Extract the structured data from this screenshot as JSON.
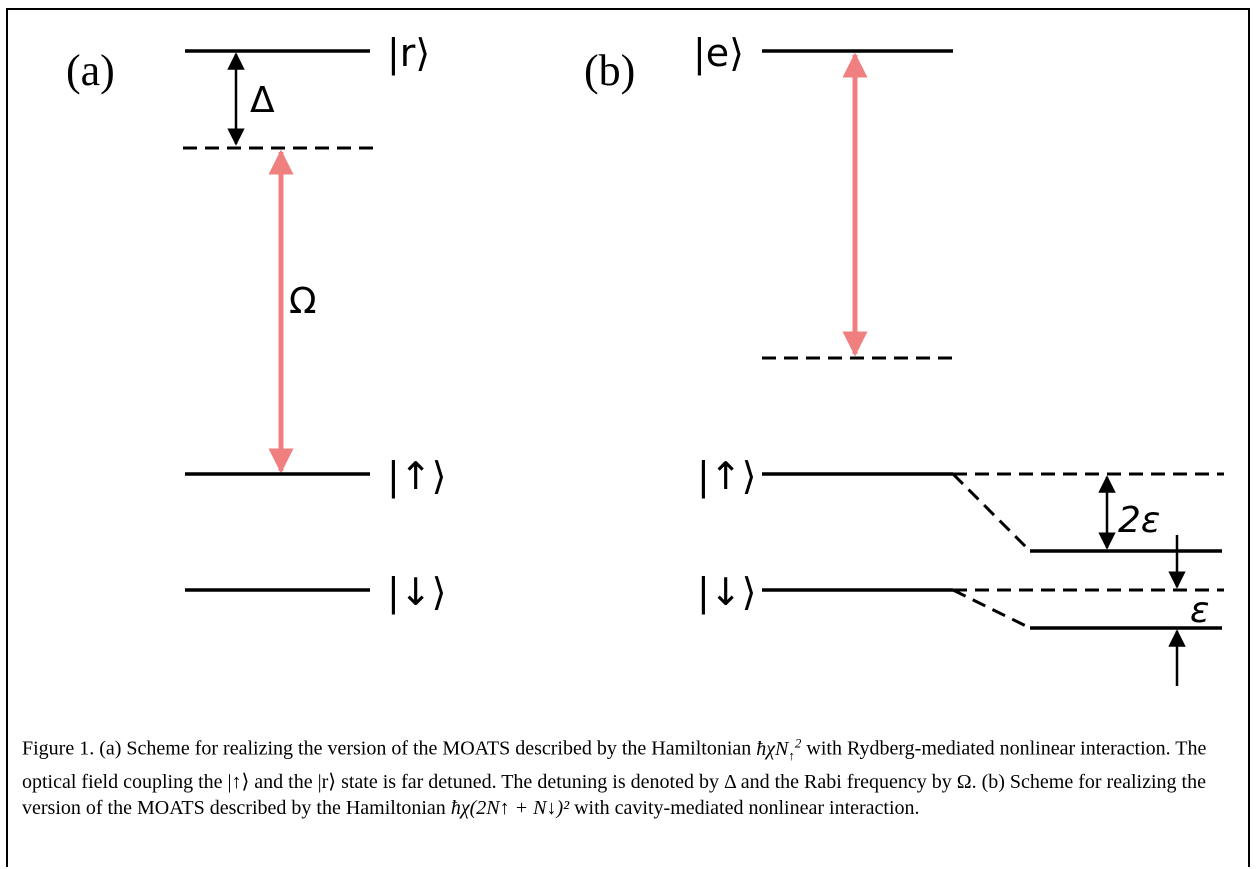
{
  "panel_a": {
    "tag": "(a)",
    "level_r": "|r⟩",
    "level_up": "|↑⟩",
    "level_down": "|↓⟩",
    "detuning_symbol": "Δ",
    "rabi_symbol": "Ω"
  },
  "panel_b": {
    "tag": "(b)",
    "level_e": "|e⟩",
    "level_up": "|↑⟩",
    "level_down": "|↓⟩",
    "shift_up": "2ε",
    "shift_down": "ε"
  },
  "colors": {
    "coupling_arrow": "#f08080",
    "lines": "#000000"
  },
  "caption": {
    "part1": "Figure 1. (a) Scheme for realizing the version of the MOATS described by the Hamiltonian ",
    "ham1_base": "ħχN",
    "ham1_sub": "↑",
    "ham1_sup": "2",
    "part2": " with Rydberg-mediated nonlinear interaction. The optical field coupling the |↑⟩ and the |r⟩ state is far detuned. The detuning is denoted by Δ and the Rabi frequency by Ω. (b) Scheme for realizing the version of the MOATS described by the Hamiltonian ",
    "ham2": "ħχ(2N↑ + N↓)²",
    "part3": " with cavity-mediated nonlinear interaction."
  }
}
